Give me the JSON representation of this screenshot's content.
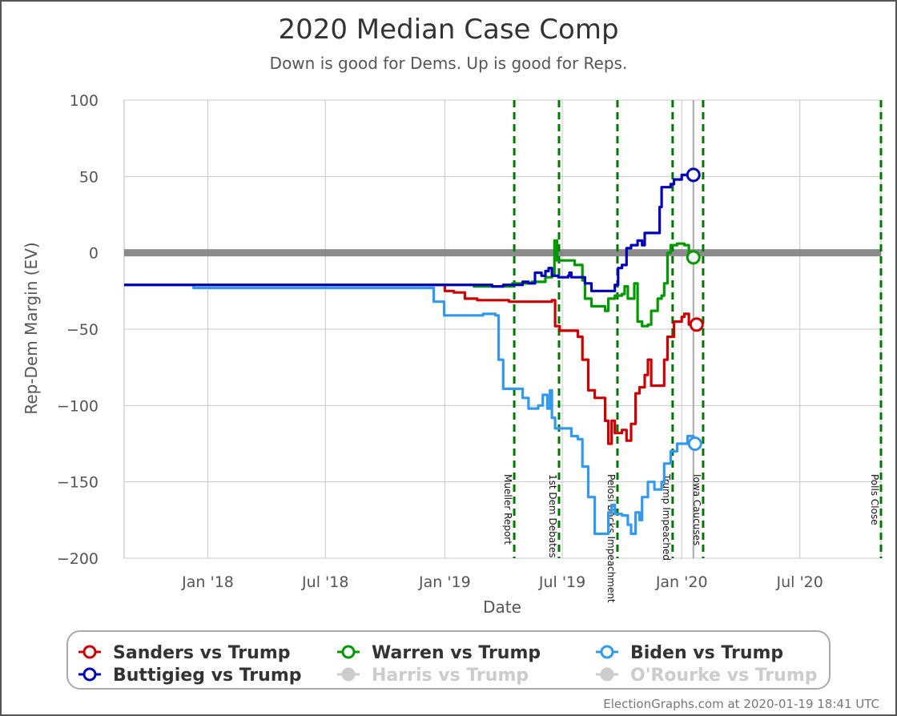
{
  "chart_data": {
    "type": "line",
    "title": "2020 Median Case Comp",
    "subtitle": "Down is good for Dems. Up is good for Reps.",
    "xlabel": "Date",
    "ylabel": "Rep-Dem Margin (EV)",
    "ylim": [
      -200,
      100
    ],
    "xlim": [
      "2017-08-25",
      "2020-11-03"
    ],
    "yticks": [
      100,
      50,
      0,
      -50,
      -100,
      -150,
      -200
    ],
    "ytick_labels": [
      "100",
      "50",
      "0",
      "−50",
      "−100",
      "−150",
      "−200"
    ],
    "xticks": [
      {
        "date": "2018-01-01",
        "label": "Jan '18"
      },
      {
        "date": "2018-07-01",
        "label": "Jul '18"
      },
      {
        "date": "2019-01-01",
        "label": "Jan '19"
      },
      {
        "date": "2019-07-01",
        "label": "Jul '19"
      },
      {
        "date": "2020-01-01",
        "label": "Jan '20"
      },
      {
        "date": "2020-07-01",
        "label": "Jul '20"
      }
    ],
    "grid": true,
    "current_date": "2020-01-19",
    "events": [
      {
        "date": "2019-04-18",
        "label": "Mueller Report"
      },
      {
        "date": "2019-06-26",
        "label": "1st Dem Debates"
      },
      {
        "date": "2019-09-24",
        "label": "Pelosi Backs Impeachment"
      },
      {
        "date": "2019-12-18",
        "label": "Trump Impeached"
      },
      {
        "date": "2020-02-03",
        "label": "Iowa Caucuses"
      },
      {
        "date": "2020-11-03",
        "label": "Polls Close"
      }
    ],
    "series": [
      {
        "name": "Sanders vs Trump",
        "color": "#cc0000",
        "points": [
          [
            "2017-08-25",
            -21
          ],
          [
            "2018-12-10",
            -21
          ],
          [
            "2019-01-01",
            -25
          ],
          [
            "2019-01-15",
            -26
          ],
          [
            "2019-02-01",
            -30
          ],
          [
            "2019-02-20",
            -31
          ],
          [
            "2019-03-15",
            -31
          ],
          [
            "2019-04-10",
            -32
          ],
          [
            "2019-05-01",
            -32
          ],
          [
            "2019-06-15",
            -31
          ],
          [
            "2019-06-20",
            -48
          ],
          [
            "2019-06-27",
            -51
          ],
          [
            "2019-07-15",
            -51
          ],
          [
            "2019-07-25",
            -55
          ],
          [
            "2019-08-01",
            -70
          ],
          [
            "2019-08-10",
            -90
          ],
          [
            "2019-08-20",
            -95
          ],
          [
            "2019-09-01",
            -95
          ],
          [
            "2019-09-05",
            -110
          ],
          [
            "2019-09-10",
            -125
          ],
          [
            "2019-09-15",
            -110
          ],
          [
            "2019-09-20",
            -118
          ],
          [
            "2019-10-01",
            -116
          ],
          [
            "2019-10-08",
            -123
          ],
          [
            "2019-10-15",
            -112
          ],
          [
            "2019-10-22",
            -92
          ],
          [
            "2019-10-28",
            -88
          ],
          [
            "2019-11-05",
            -80
          ],
          [
            "2019-11-10",
            -70
          ],
          [
            "2019-11-15",
            -87
          ],
          [
            "2019-12-01",
            -87
          ],
          [
            "2019-12-05",
            -70
          ],
          [
            "2019-12-10",
            -55
          ],
          [
            "2019-12-20",
            -45
          ],
          [
            "2020-01-01",
            -42
          ],
          [
            "2020-01-05",
            -40
          ],
          [
            "2020-01-12",
            -47
          ],
          [
            "2020-01-19",
            -47
          ]
        ]
      },
      {
        "name": "Warren vs Trump",
        "color": "#009900",
        "points": [
          [
            "2017-08-25",
            -21
          ],
          [
            "2018-12-10",
            -21
          ],
          [
            "2019-01-01",
            -21
          ],
          [
            "2019-02-15",
            -22
          ],
          [
            "2019-03-15",
            -22
          ],
          [
            "2019-04-15",
            -20
          ],
          [
            "2019-05-15",
            -19
          ],
          [
            "2019-06-05",
            -16
          ],
          [
            "2019-06-15",
            -14
          ],
          [
            "2019-06-19",
            8
          ],
          [
            "2019-06-23",
            -5
          ],
          [
            "2019-07-15",
            -5
          ],
          [
            "2019-07-20",
            -8
          ],
          [
            "2019-08-01",
            -18
          ],
          [
            "2019-08-05",
            -30
          ],
          [
            "2019-08-15",
            -35
          ],
          [
            "2019-09-05",
            -38
          ],
          [
            "2019-09-10",
            -30
          ],
          [
            "2019-09-20",
            -28
          ],
          [
            "2019-10-01",
            -27
          ],
          [
            "2019-10-05",
            -22
          ],
          [
            "2019-10-10",
            -30
          ],
          [
            "2019-10-15",
            -30
          ],
          [
            "2019-10-20",
            -20
          ],
          [
            "2019-10-25",
            -45
          ],
          [
            "2019-11-01",
            -48
          ],
          [
            "2019-11-10",
            -47
          ],
          [
            "2019-11-15",
            -38
          ],
          [
            "2019-11-25",
            -30
          ],
          [
            "2019-12-01",
            -28
          ],
          [
            "2019-12-05",
            -20
          ],
          [
            "2019-12-10",
            0
          ],
          [
            "2019-12-15",
            5
          ],
          [
            "2019-12-25",
            6
          ],
          [
            "2020-01-05",
            5
          ],
          [
            "2020-01-12",
            -3
          ],
          [
            "2020-01-19",
            -3
          ]
        ]
      },
      {
        "name": "Biden vs Trump",
        "color": "#3399ee",
        "points": [
          [
            "2017-08-25",
            -21
          ],
          [
            "2017-12-01",
            -21
          ],
          [
            "2017-12-10",
            -23
          ],
          [
            "2018-12-01",
            -23
          ],
          [
            "2018-12-15",
            -32
          ],
          [
            "2018-12-31",
            -41
          ],
          [
            "2019-02-15",
            -41
          ],
          [
            "2019-03-01",
            -40
          ],
          [
            "2019-03-20",
            -41
          ],
          [
            "2019-03-25",
            -70
          ],
          [
            "2019-04-01",
            -89
          ],
          [
            "2019-04-25",
            -89
          ],
          [
            "2019-05-01",
            -95
          ],
          [
            "2019-05-10",
            -102
          ],
          [
            "2019-05-25",
            -100
          ],
          [
            "2019-06-01",
            -93
          ],
          [
            "2019-06-08",
            -102
          ],
          [
            "2019-06-12",
            -90
          ],
          [
            "2019-06-15",
            -108
          ],
          [
            "2019-06-20",
            -115
          ],
          [
            "2019-07-15",
            -120
          ],
          [
            "2019-07-25",
            -122
          ],
          [
            "2019-08-01",
            -140
          ],
          [
            "2019-08-10",
            -160
          ],
          [
            "2019-08-20",
            -184
          ],
          [
            "2019-09-05",
            -184
          ],
          [
            "2019-09-10",
            -170
          ],
          [
            "2019-09-15",
            -165
          ],
          [
            "2019-09-20",
            -171
          ],
          [
            "2019-10-01",
            -172
          ],
          [
            "2019-10-10",
            -178
          ],
          [
            "2019-10-15",
            -184
          ],
          [
            "2019-10-22",
            -170
          ],
          [
            "2019-10-28",
            -175
          ],
          [
            "2019-11-01",
            -160
          ],
          [
            "2019-11-10",
            -150
          ],
          [
            "2019-11-20",
            -155
          ],
          [
            "2019-12-01",
            -150
          ],
          [
            "2019-12-05",
            -138
          ],
          [
            "2019-12-15",
            -130
          ],
          [
            "2019-12-25",
            -125
          ],
          [
            "2020-01-01",
            -125
          ],
          [
            "2020-01-10",
            -120
          ],
          [
            "2020-01-19",
            -125
          ]
        ]
      },
      {
        "name": "Buttigieg vs Trump",
        "color": "#0000bb",
        "points": [
          [
            "2017-08-25",
            -21
          ],
          [
            "2018-12-10",
            -21
          ],
          [
            "2019-01-01",
            -21
          ],
          [
            "2019-03-15",
            -22
          ],
          [
            "2019-04-01",
            -21
          ],
          [
            "2019-05-01",
            -19
          ],
          [
            "2019-05-10",
            -20
          ],
          [
            "2019-05-20",
            -13
          ],
          [
            "2019-05-30",
            -15
          ],
          [
            "2019-06-05",
            -12
          ],
          [
            "2019-06-10",
            -10
          ],
          [
            "2019-06-15",
            -15
          ],
          [
            "2019-06-25",
            -16
          ],
          [
            "2019-07-10",
            -15
          ],
          [
            "2019-07-12",
            -13
          ],
          [
            "2019-07-15",
            -16
          ],
          [
            "2019-08-05",
            -20
          ],
          [
            "2019-08-15",
            -25
          ],
          [
            "2019-09-20",
            -21
          ],
          [
            "2019-09-25",
            -10
          ],
          [
            "2019-10-01",
            -8
          ],
          [
            "2019-10-08",
            3
          ],
          [
            "2019-10-15",
            5
          ],
          [
            "2019-10-25",
            8
          ],
          [
            "2019-11-01",
            5
          ],
          [
            "2019-11-05",
            13
          ],
          [
            "2019-11-25",
            13
          ],
          [
            "2019-11-28",
            30
          ],
          [
            "2019-12-01",
            43
          ],
          [
            "2019-12-15",
            45
          ],
          [
            "2019-12-20",
            48
          ],
          [
            "2020-01-01",
            51
          ],
          [
            "2020-01-10",
            51
          ],
          [
            "2020-01-19",
            51
          ]
        ]
      },
      {
        "name": "Harris vs Trump",
        "color": "#cccccc",
        "points": []
      },
      {
        "name": "O'Rourke vs Trump",
        "color": "#cccccc",
        "points": []
      }
    ],
    "legend": {
      "position": "bottom",
      "entries": [
        {
          "label": "Sanders vs Trump",
          "color": "#cc0000",
          "active": true
        },
        {
          "label": "Warren vs Trump",
          "color": "#009900",
          "active": true
        },
        {
          "label": "Biden vs Trump",
          "color": "#3399ee",
          "active": true
        },
        {
          "label": "Buttigieg vs Trump",
          "color": "#0000bb",
          "active": true
        },
        {
          "label": "Harris vs Trump",
          "color": "#cccccc",
          "active": false
        },
        {
          "label": "O'Rourke vs Trump",
          "color": "#cccccc",
          "active": false
        }
      ]
    }
  },
  "credit": "ElectionGraphs.com at 2020-01-19 18:41 UTC"
}
